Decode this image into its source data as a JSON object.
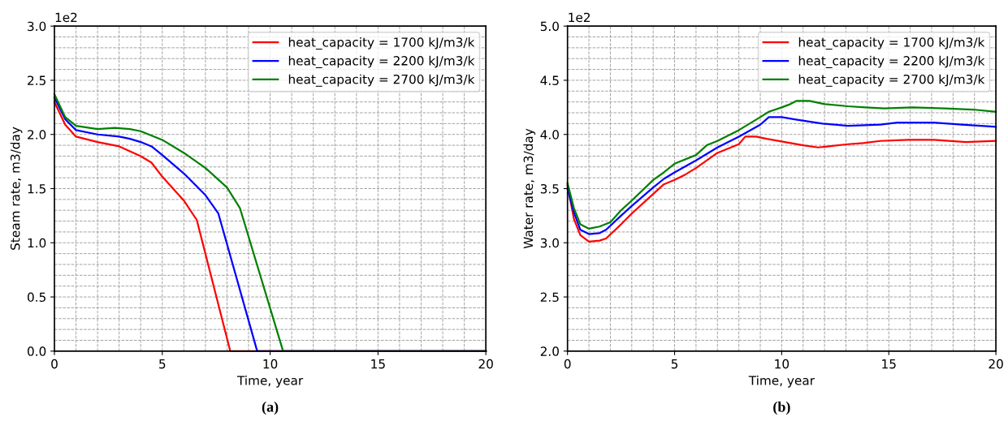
{
  "chart_data": [
    {
      "type": "line",
      "xlabel": "Time, year",
      "ylabel": "Steam rate, m3/day",
      "annotations": [
        "1e2",
        "(a)"
      ],
      "xlim": [
        0,
        20
      ],
      "xticks": [
        0,
        5,
        10,
        15,
        20
      ],
      "ylim": [
        0,
        3.0
      ],
      "yticks": [
        {
          "value": 0,
          "label": "0.0"
        },
        0.5,
        {
          "value": 1,
          "label": "1.0"
        },
        1.5,
        {
          "value": 2,
          "label": "2.0"
        },
        2.5,
        {
          "value": 3,
          "label": "3.0"
        }
      ],
      "grid": true,
      "legend": "top right",
      "series": [
        {
          "name": "heat_capacity = 1700 kJ/m3/k",
          "color": "#ff0000",
          "x": [
            0,
            0.5,
            1,
            2,
            3,
            4,
            4.5,
            5,
            6,
            6.6,
            8.15,
            20
          ],
          "values": [
            2.3,
            2.09,
            1.98,
            1.93,
            1.89,
            1.8,
            1.74,
            1.61,
            1.39,
            1.21,
            0,
            0
          ]
        },
        {
          "name": "heat_capacity = 2200 kJ/m3/k",
          "color": "#0000ff",
          "x": [
            0,
            0.5,
            1,
            2,
            3,
            3.5,
            4,
            4.5,
            5,
            6,
            7,
            7.6,
            9.4,
            20
          ],
          "values": [
            2.34,
            2.14,
            2.04,
            2.0,
            1.98,
            1.96,
            1.93,
            1.89,
            1.81,
            1.64,
            1.44,
            1.27,
            0,
            0
          ]
        },
        {
          "name": "heat_capacity = 2700 kJ/m3/k",
          "color": "#008000",
          "x": [
            0,
            0.5,
            1,
            2,
            2.8,
            3.5,
            4,
            5,
            6,
            7,
            8,
            8.6,
            10.6,
            20
          ],
          "values": [
            2.37,
            2.16,
            2.08,
            2.05,
            2.06,
            2.05,
            2.03,
            1.95,
            1.83,
            1.69,
            1.51,
            1.32,
            0,
            0
          ]
        }
      ]
    },
    {
      "type": "line",
      "xlabel": "Time, year",
      "ylabel": "Water rate, m3/day",
      "annotations": [
        "1e2",
        "(b)"
      ],
      "xlim": [
        0,
        20
      ],
      "xticks": [
        0,
        5,
        10,
        15,
        20
      ],
      "ylim": [
        2.0,
        5.0
      ],
      "yticks": [
        {
          "value": 2,
          "label": "2.0"
        },
        2.5,
        {
          "value": 3,
          "label": "3.0"
        },
        3.5,
        {
          "value": 4,
          "label": "4.0"
        },
        4.5,
        {
          "value": 5,
          "label": "5.0"
        }
      ],
      "grid": true,
      "legend": "top right",
      "series": [
        {
          "name": "heat_capacity = 1700 kJ/m3/k",
          "color": "#ff0000",
          "x": [
            0,
            0.3,
            0.6,
            1,
            1.5,
            1.8,
            2.5,
            3,
            4,
            4.5,
            5,
            5.5,
            6,
            7,
            8,
            8.3,
            8.8,
            9.3,
            11.0,
            11.7,
            12.2,
            13.1,
            13.8,
            14.6,
            15.9,
            17.1,
            18.6,
            20
          ],
          "values": [
            3.53,
            3.22,
            3.07,
            3.01,
            3.02,
            3.04,
            3.17,
            3.27,
            3.45,
            3.54,
            3.58,
            3.63,
            3.69,
            3.83,
            3.91,
            3.98,
            3.98,
            3.96,
            3.9,
            3.88,
            3.89,
            3.91,
            3.92,
            3.94,
            3.95,
            3.95,
            3.93,
            3.94
          ]
        },
        {
          "name": "heat_capacity = 2200 kJ/m3/k",
          "color": "#0000ff",
          "x": [
            0,
            0.3,
            0.6,
            1,
            1.5,
            1.8,
            2.5,
            3,
            4,
            4.5,
            5,
            6,
            7,
            8,
            9,
            9.4,
            10.0,
            10.6,
            11.9,
            13.1,
            14.6,
            15.4,
            17.1,
            18.4,
            20
          ],
          "values": [
            3.5,
            3.28,
            3.12,
            3.08,
            3.09,
            3.12,
            3.25,
            3.34,
            3.51,
            3.59,
            3.65,
            3.76,
            3.88,
            3.98,
            4.09,
            4.16,
            4.16,
            4.14,
            4.1,
            4.08,
            4.09,
            4.11,
            4.11,
            4.09,
            4.07
          ]
        },
        {
          "name": "heat_capacity = 2700 kJ/m3/k",
          "color": "#008000",
          "x": [
            0,
            0.3,
            0.6,
            1,
            1.5,
            2,
            2.5,
            3,
            4,
            4.5,
            5,
            6,
            6.5,
            7,
            8,
            9,
            9.4,
            10.0,
            10.4,
            10.7,
            11.3,
            12.0,
            13.1,
            13.9,
            14.8,
            16.1,
            17.6,
            18.9,
            20
          ],
          "values": [
            3.55,
            3.32,
            3.17,
            3.13,
            3.15,
            3.19,
            3.3,
            3.39,
            3.58,
            3.65,
            3.73,
            3.81,
            3.9,
            3.94,
            4.04,
            4.16,
            4.21,
            4.25,
            4.28,
            4.31,
            4.31,
            4.28,
            4.26,
            4.25,
            4.24,
            4.25,
            4.24,
            4.23,
            4.21
          ]
        }
      ]
    }
  ]
}
